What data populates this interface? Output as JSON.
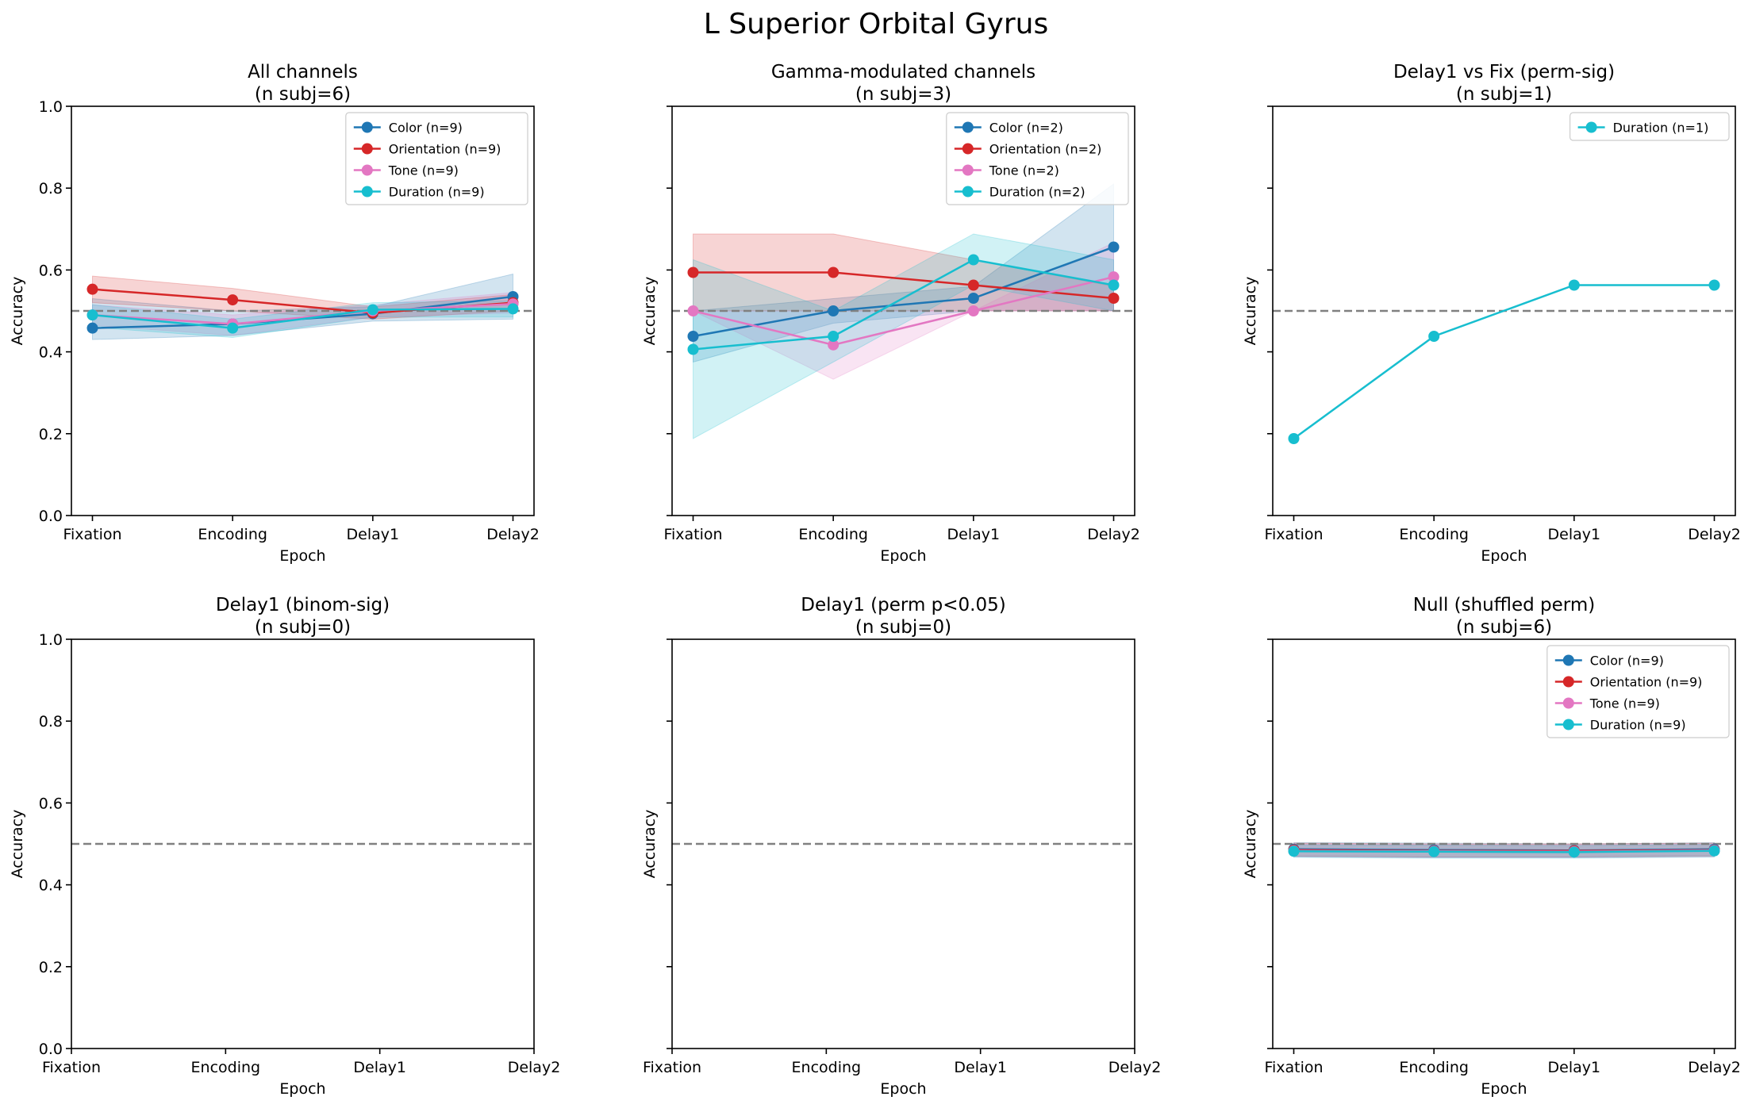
{
  "figure": {
    "title": "L Superior Orbital Gyrus"
  },
  "colors": {
    "Color": "#1f77b4",
    "Orientation": "#d62728",
    "Tone": "#e377c2",
    "Duration": "#17becf",
    "chance": "#808080"
  },
  "chart_data": [
    {
      "type": "line",
      "title": "All channels",
      "subtitle": "(n subj=6)",
      "xlabel": "Epoch",
      "ylabel": "Accuracy",
      "categories": [
        "Fixation",
        "Encoding",
        "Delay1",
        "Delay2"
      ],
      "ylim": [
        0,
        1
      ],
      "yticks": [
        "0.0",
        "0.2",
        "0.4",
        "0.6",
        "0.8",
        "1.0"
      ],
      "show_ytick_labels": true,
      "chance": 0.5,
      "legend": "top-right",
      "series": [
        {
          "name": "Color (n=9)",
          "key": "Color",
          "values": [
            0.458,
            0.468,
            0.493,
            0.535
          ],
          "lower": [
            0.43,
            0.44,
            0.475,
            0.48
          ],
          "upper": [
            0.53,
            0.5,
            0.51,
            0.59
          ]
        },
        {
          "name": "Orientation (n=9)",
          "key": "Orientation",
          "values": [
            0.553,
            0.527,
            0.495,
            0.52
          ],
          "lower": [
            0.52,
            0.5,
            0.48,
            0.5
          ],
          "upper": [
            0.585,
            0.555,
            0.51,
            0.54
          ]
        },
        {
          "name": "Tone (n=9)",
          "key": "Tone",
          "values": [
            0.49,
            0.468,
            0.5,
            0.517
          ],
          "lower": [
            0.465,
            0.44,
            0.485,
            0.495
          ],
          "upper": [
            0.515,
            0.49,
            0.515,
            0.545
          ]
        },
        {
          "name": "Duration (n=9)",
          "key": "Duration",
          "values": [
            0.49,
            0.458,
            0.503,
            0.505
          ],
          "lower": [
            0.46,
            0.435,
            0.485,
            0.485
          ],
          "upper": [
            0.515,
            0.48,
            0.52,
            0.525
          ]
        }
      ]
    },
    {
      "type": "line",
      "title": "Gamma-modulated channels",
      "subtitle": "(n subj=3)",
      "xlabel": "Epoch",
      "ylabel": "Accuracy",
      "categories": [
        "Fixation",
        "Encoding",
        "Delay1",
        "Delay2"
      ],
      "ylim": [
        0,
        1
      ],
      "yticks": [
        "0.0",
        "0.2",
        "0.4",
        "0.6",
        "0.8",
        "1.0"
      ],
      "show_ytick_labels": false,
      "chance": 0.5,
      "legend": "top-right",
      "series": [
        {
          "name": "Color (n=2)",
          "key": "Color",
          "values": [
            0.438,
            0.5,
            0.531,
            0.656
          ],
          "lower": [
            0.375,
            0.47,
            0.5,
            0.5
          ],
          "upper": [
            0.5,
            0.53,
            0.56,
            0.81
          ]
        },
        {
          "name": "Orientation (n=2)",
          "key": "Orientation",
          "values": [
            0.594,
            0.594,
            0.563,
            0.531
          ],
          "lower": [
            0.5,
            0.5,
            0.5,
            0.5
          ],
          "upper": [
            0.688,
            0.688,
            0.625,
            0.56
          ]
        },
        {
          "name": "Tone (n=2)",
          "key": "Tone",
          "values": [
            0.5,
            0.417,
            0.5,
            0.583
          ],
          "lower": [
            0.5,
            0.333,
            0.5,
            0.5
          ],
          "upper": [
            0.5,
            0.5,
            0.5,
            0.667
          ]
        },
        {
          "name": "Duration (n=2)",
          "key": "Duration",
          "values": [
            0.406,
            0.438,
            0.625,
            0.563
          ],
          "lower": [
            0.188,
            0.375,
            0.563,
            0.5
          ],
          "upper": [
            0.625,
            0.5,
            0.688,
            0.625
          ]
        }
      ]
    },
    {
      "type": "line",
      "title": "Delay1 vs Fix (perm-sig)",
      "subtitle": "(n subj=1)",
      "xlabel": "Epoch",
      "ylabel": "Accuracy",
      "categories": [
        "Fixation",
        "Encoding",
        "Delay1",
        "Delay2"
      ],
      "ylim": [
        0,
        1
      ],
      "yticks": [
        "0.0",
        "0.2",
        "0.4",
        "0.6",
        "0.8",
        "1.0"
      ],
      "show_ytick_labels": false,
      "chance": 0.5,
      "legend": "top-right",
      "series": [
        {
          "name": "Duration (n=1)",
          "key": "Duration",
          "values": [
            0.188,
            0.438,
            0.563,
            0.563
          ]
        }
      ]
    },
    {
      "type": "line",
      "title": "Delay1 (binom-sig)",
      "subtitle": "(n subj=0)",
      "xlabel": "Epoch",
      "ylabel": "Accuracy",
      "categories": [
        "Fixation",
        "Encoding",
        "Delay1",
        "Delay2"
      ],
      "ylim": [
        0,
        1
      ],
      "yticks": [
        "0.0",
        "0.2",
        "0.4",
        "0.6",
        "0.8",
        "1.0"
      ],
      "show_ytick_labels": true,
      "chance": 0.5,
      "legend": "none",
      "series": []
    },
    {
      "type": "line",
      "title": "Delay1 (perm p<0.05)",
      "subtitle": "(n subj=0)",
      "xlabel": "Epoch",
      "ylabel": "Accuracy",
      "categories": [
        "Fixation",
        "Encoding",
        "Delay1",
        "Delay2"
      ],
      "ylim": [
        0,
        1
      ],
      "yticks": [
        "0.0",
        "0.2",
        "0.4",
        "0.6",
        "0.8",
        "1.0"
      ],
      "show_ytick_labels": false,
      "chance": 0.5,
      "legend": "none",
      "series": []
    },
    {
      "type": "line",
      "title": "Null (shuffled perm)",
      "subtitle": "(n subj=6)",
      "xlabel": "Epoch",
      "ylabel": "Accuracy",
      "categories": [
        "Fixation",
        "Encoding",
        "Delay1",
        "Delay2"
      ],
      "ylim": [
        0,
        1
      ],
      "yticks": [
        "0.0",
        "0.2",
        "0.4",
        "0.6",
        "0.8",
        "1.0"
      ],
      "show_ytick_labels": false,
      "chance": 0.5,
      "legend": "top-right",
      "series": [
        {
          "name": "Color (n=9)",
          "key": "Color",
          "values": [
            0.487,
            0.485,
            0.484,
            0.487
          ],
          "lower": [
            0.47,
            0.468,
            0.468,
            0.472
          ],
          "upper": [
            0.503,
            0.502,
            0.5,
            0.503
          ]
        },
        {
          "name": "Orientation (n=9)",
          "key": "Orientation",
          "values": [
            0.485,
            0.483,
            0.483,
            0.485
          ],
          "lower": [
            0.47,
            0.468,
            0.468,
            0.47
          ],
          "upper": [
            0.502,
            0.5,
            0.5,
            0.502
          ]
        },
        {
          "name": "Tone (n=9)",
          "key": "Tone",
          "values": [
            0.483,
            0.482,
            0.481,
            0.484
          ],
          "lower": [
            0.468,
            0.466,
            0.466,
            0.468
          ],
          "upper": [
            0.5,
            0.498,
            0.497,
            0.5
          ]
        },
        {
          "name": "Duration (n=9)",
          "key": "Duration",
          "values": [
            0.482,
            0.481,
            0.48,
            0.483
          ],
          "lower": [
            0.467,
            0.465,
            0.465,
            0.468
          ],
          "upper": [
            0.498,
            0.497,
            0.496,
            0.499
          ]
        }
      ]
    }
  ]
}
